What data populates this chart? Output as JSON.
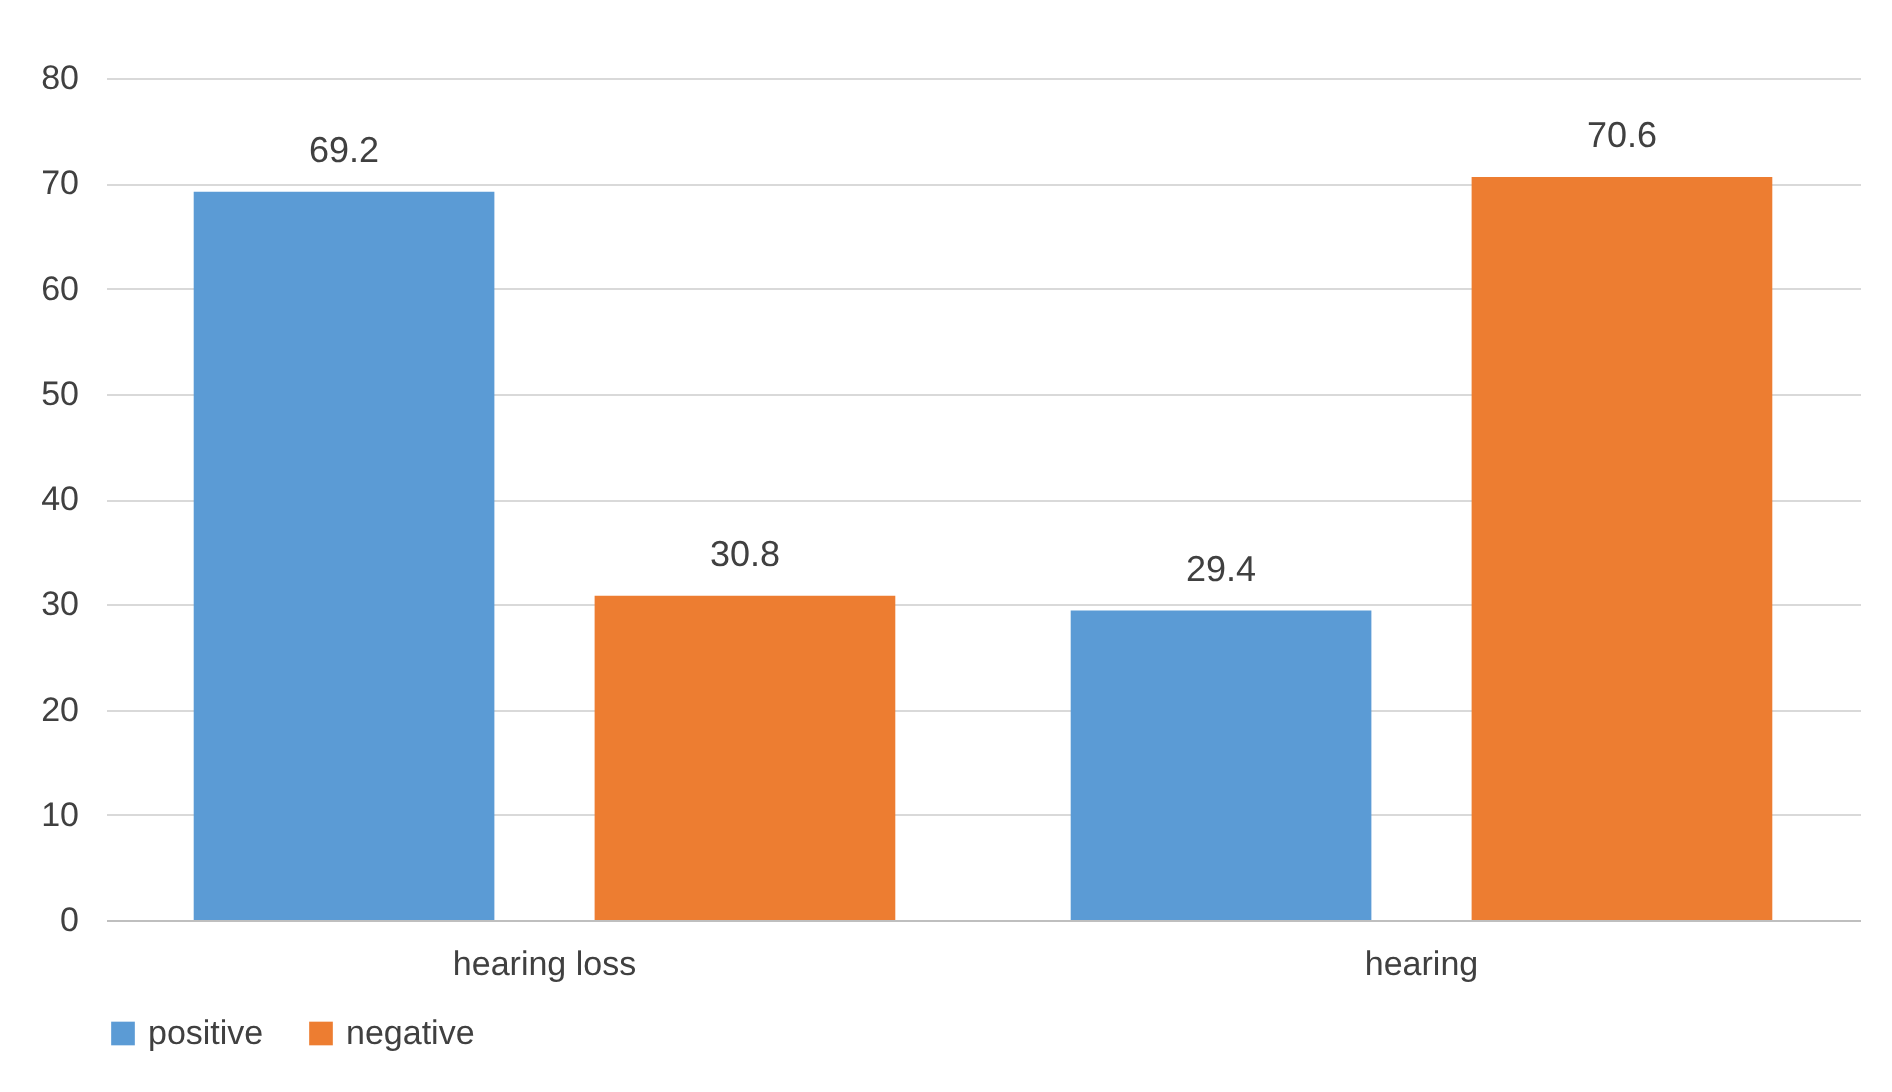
{
  "chart_data": {
    "type": "bar",
    "categories": [
      "hearing loss",
      "hearing"
    ],
    "series": [
      {
        "name": "positive",
        "color": "#5b9bd5",
        "values": [
          69.2,
          29.4
        ]
      },
      {
        "name": "negative",
        "color": "#ed7d31",
        "values": [
          30.8,
          70.6
        ]
      }
    ],
    "ylim": [
      0,
      80
    ],
    "yticks": [
      0,
      10,
      20,
      30,
      40,
      50,
      60,
      70,
      80
    ],
    "grid": "y",
    "legend": "bottom",
    "data_labels": true
  }
}
